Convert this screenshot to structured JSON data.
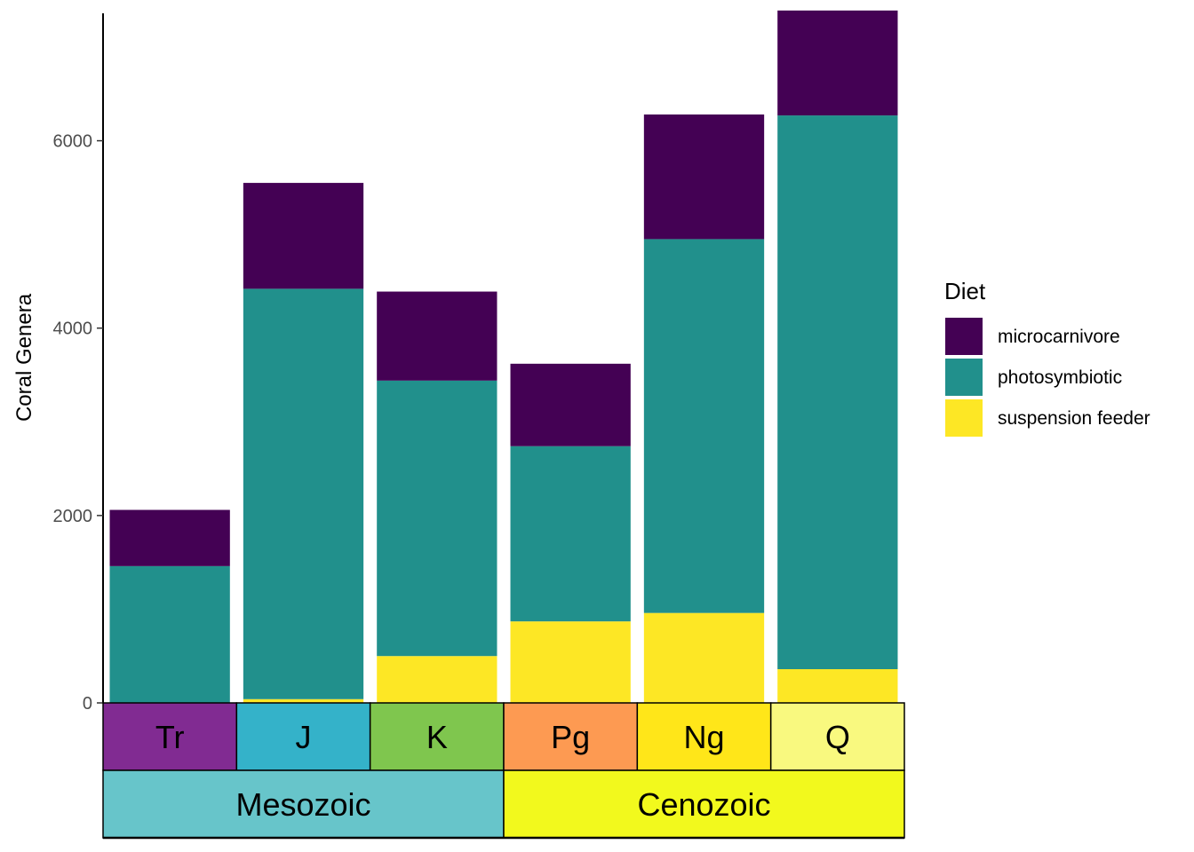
{
  "chart_data": {
    "type": "bar",
    "stacked": true,
    "categories": [
      "Tr",
      "J",
      "K",
      "Pg",
      "Ng",
      "Q"
    ],
    "series": [
      {
        "name": "suspension feeder",
        "color": "#FDE725",
        "values": [
          0,
          40,
          500,
          870,
          960,
          360
        ]
      },
      {
        "name": "photosymbiotic",
        "color": "#21908C",
        "values": [
          1460,
          4380,
          2940,
          1870,
          3990,
          5910
        ]
      },
      {
        "name": "microcarnivore",
        "color": "#440154",
        "values": [
          600,
          1130,
          950,
          880,
          1330,
          1120
        ]
      }
    ],
    "title": "",
    "xlabel": "",
    "ylabel": "Coral Genera",
    "ylim": [
      0,
      7360
    ],
    "yticks": [
      0,
      2000,
      4000,
      6000
    ],
    "ytick_labels": [
      "0",
      "2000",
      "4000",
      "6000"
    ],
    "legend": {
      "title": "Diet",
      "position": "right"
    },
    "grid": false,
    "timescale": {
      "periods": [
        {
          "label": "Tr",
          "color": "#812B92"
        },
        {
          "label": "J",
          "color": "#34B2C9"
        },
        {
          "label": "K",
          "color": "#7FC64E"
        },
        {
          "label": "Pg",
          "color": "#FD9A52"
        },
        {
          "label": "Ng",
          "color": "#FFE619"
        },
        {
          "label": "Q",
          "color": "#F9F97F"
        }
      ],
      "eras": [
        {
          "label": "Mesozoic",
          "color": "#67C5CA",
          "span": 3
        },
        {
          "label": "Cenozoic",
          "color": "#F2F91D",
          "span": 3
        }
      ]
    }
  }
}
